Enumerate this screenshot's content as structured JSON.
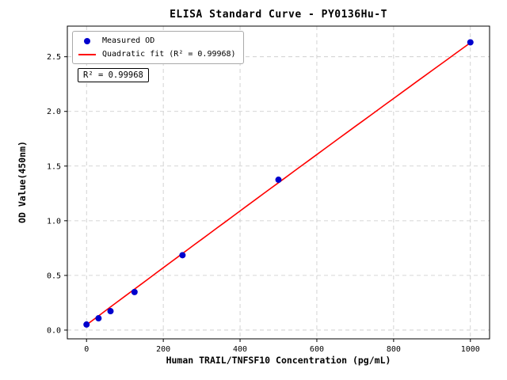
{
  "chart_data": {
    "type": "scatter",
    "title": "ELISA Standard Curve - PY0136Hu-T",
    "xlabel": "Human TRAIL/TNFSF10 Concentration (pg/mL)",
    "ylabel": "OD Value(450nm)",
    "xlim": [
      -50,
      1050
    ],
    "ylim": [
      -0.08,
      2.78
    ],
    "x_ticks": [
      0,
      200,
      400,
      600,
      800,
      1000
    ],
    "y_ticks": [
      0.0,
      0.5,
      1.0,
      1.5,
      2.0,
      2.5
    ],
    "grid": true,
    "legend_position": "upper left",
    "series": [
      {
        "name": "Measured OD",
        "type": "scatter",
        "color": "#0000cd",
        "x": [
          0,
          31.25,
          62.5,
          125,
          250,
          500,
          1000
        ],
        "y": [
          0.051,
          0.108,
          0.173,
          0.348,
          0.685,
          1.375,
          2.632
        ]
      },
      {
        "name": "Quadratic fit (R² = 0.99968)",
        "type": "line",
        "color": "#ff0000",
        "fit": {
          "kind": "quadratic",
          "a": 0.048,
          "b": 0.00262,
          "c": -4e-08,
          "x_range": [
            0,
            1000
          ]
        }
      }
    ],
    "annotation": "R² = 0.99968"
  },
  "legend": {
    "items": [
      {
        "label": "Measured OD",
        "marker": "dot",
        "color": "#0000cd"
      },
      {
        "label": "Quadratic fit (R² = 0.99968)",
        "marker": "line",
        "color": "#ff0000"
      }
    ]
  }
}
